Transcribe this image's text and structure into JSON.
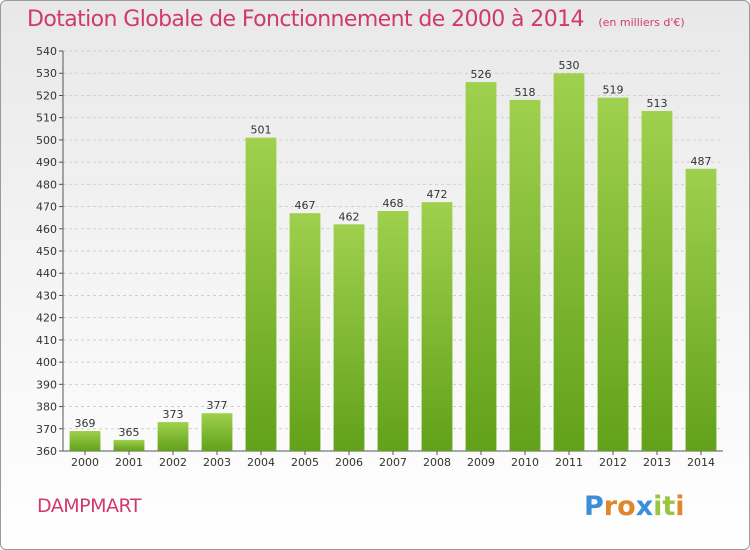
{
  "header": {
    "title": "Dotation Globale de Fonctionnement de 2000 à 2014",
    "unit": "(en milliers d'€)"
  },
  "footer": {
    "commune": "DAMPMART",
    "logo": {
      "text": "Proxiti",
      "letters": [
        {
          "ch": "P",
          "color": "#3a8fd8"
        },
        {
          "ch": "r",
          "color": "#e0872c"
        },
        {
          "ch": "o",
          "color": "#e0872c"
        },
        {
          "ch": "x",
          "color": "#3a8fd8"
        },
        {
          "ch": "i",
          "color": "#9ac540"
        },
        {
          "ch": "t",
          "color": "#9ac540"
        },
        {
          "ch": "i",
          "color": "#e0872c"
        }
      ]
    }
  },
  "colors": {
    "bar_top": "#9fd04e",
    "bar_bottom": "#62a11a",
    "accent_text": "#d03a6a",
    "grid": "#cfcfcf"
  },
  "chart_data": {
    "type": "bar",
    "title": "Dotation Globale de Fonctionnement de 2000 à 2014",
    "subtitle": "(en milliers d'€)",
    "xlabel": "",
    "ylabel": "",
    "categories": [
      "2000",
      "2001",
      "2002",
      "2003",
      "2004",
      "2005",
      "2006",
      "2007",
      "2008",
      "2009",
      "2010",
      "2011",
      "2012",
      "2013",
      "2014"
    ],
    "values": [
      369,
      365,
      373,
      377,
      501,
      467,
      462,
      468,
      472,
      526,
      518,
      530,
      519,
      513,
      487
    ],
    "ylim": [
      360,
      540
    ],
    "yticks": [
      360,
      370,
      380,
      390,
      400,
      410,
      420,
      430,
      440,
      450,
      460,
      470,
      480,
      490,
      500,
      510,
      520,
      530,
      540
    ],
    "grid": true,
    "legend": "none",
    "data_labels": true
  }
}
